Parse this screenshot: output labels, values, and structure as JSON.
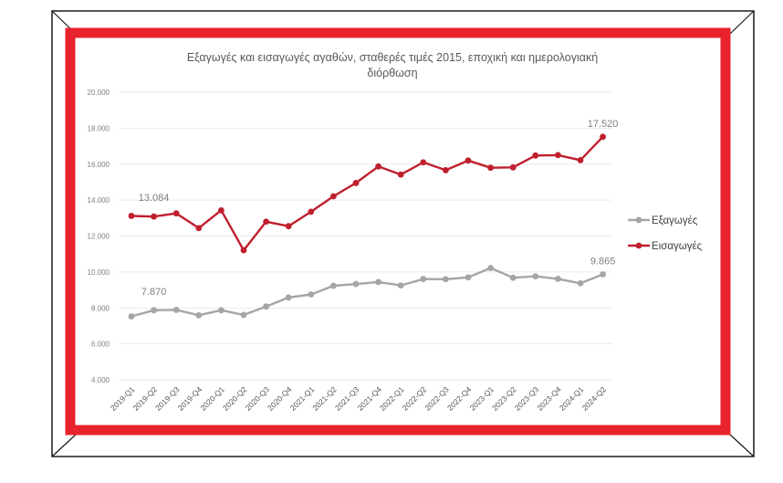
{
  "chart_data": {
    "type": "line",
    "title_line1": "Εξαγωγές και εισαγωγές αγαθών, σταθερές τιμές 2015, εποχική και ημερολογιακή",
    "title_line2": "διόρθωση",
    "categories": [
      "2019-Q1",
      "2019-Q2",
      "2019-Q3",
      "2019-Q4",
      "2020-Q1",
      "2020-Q2",
      "2020-Q3",
      "2020-Q4",
      "2021-Q1",
      "2021-Q2",
      "2021-Q3",
      "2021-Q4",
      "2022-Q1",
      "2022-Q2",
      "2022-Q3",
      "2022-Q4",
      "2023-Q1",
      "2023-Q2",
      "2023-Q3",
      "2023-Q4",
      "2024-Q1",
      "2024-Q2"
    ],
    "y_ticks": [
      "4.000",
      "6.000",
      "8.000",
      "10.000",
      "12.000",
      "14.000",
      "16.000",
      "18.000",
      "20.000"
    ],
    "ylim": [
      4000,
      20000
    ],
    "grid": true,
    "legend_position": "right",
    "series": [
      {
        "name": "Εξαγωγές",
        "color": "#a5a5a5",
        "values": [
          7530,
          7870,
          7890,
          7590,
          7870,
          7610,
          8080,
          8580,
          8750,
          9230,
          9330,
          9440,
          9250,
          9610,
          9600,
          9700,
          10220,
          9680,
          9760,
          9620,
          9370,
          9865
        ],
        "first_label": "7.870",
        "last_label": "9.865"
      },
      {
        "name": "Εισαγωγές",
        "color": "#c0202e",
        "values": [
          13120,
          13084,
          13260,
          12440,
          13430,
          11210,
          12800,
          12550,
          13350,
          14210,
          14950,
          15870,
          15420,
          16100,
          15660,
          16200,
          15800,
          15820,
          16480,
          16500,
          16220,
          17520
        ],
        "first_label": "13.084",
        "last_label": "17.520"
      }
    ]
  },
  "frame": {
    "border_color": "#e8232b"
  }
}
